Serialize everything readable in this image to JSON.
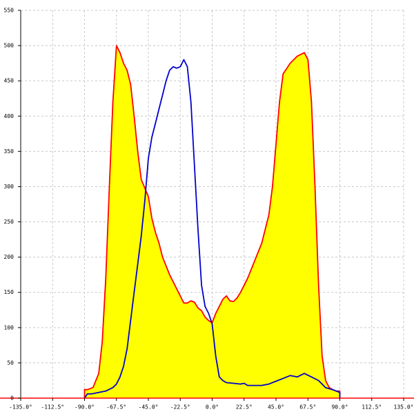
{
  "chart_data": {
    "type": "line",
    "xlim": [
      -135,
      135
    ],
    "ylim": [
      0,
      550
    ],
    "xticks": [
      {
        "value": -135,
        "label": "-135.0°"
      },
      {
        "value": -112.5,
        "label": "-112.5°"
      },
      {
        "value": -90,
        "label": "-90.0°"
      },
      {
        "value": -67.5,
        "label": "-67.5°"
      },
      {
        "value": -45,
        "label": "-45.0°"
      },
      {
        "value": -22.5,
        "label": "-22.5°"
      },
      {
        "value": 0,
        "label": "0.0°"
      },
      {
        "value": 22.5,
        "label": "22.5°"
      },
      {
        "value": 45,
        "label": "45.0°"
      },
      {
        "value": 67.5,
        "label": "67.5°"
      },
      {
        "value": 90,
        "label": "90.0°"
      },
      {
        "value": 112.5,
        "label": "112.5°"
      },
      {
        "value": 135,
        "label": "135.0°"
      }
    ],
    "yticks": [
      0,
      50,
      100,
      150,
      200,
      250,
      300,
      350,
      400,
      450,
      500,
      550
    ],
    "grid": true,
    "series": [
      {
        "color": "#ff0000",
        "fill": "#ffff00",
        "x": [
          -90,
          -90,
          -88,
          -84,
          -80,
          -77.5,
          -75,
          -72.5,
          -70,
          -67.5,
          -65,
          -62.5,
          -60,
          -57.5,
          -55,
          -52.5,
          -50,
          -45,
          -42.5,
          -40,
          -37.5,
          -35,
          -30,
          -25,
          -20,
          -17.5,
          -15,
          -12.5,
          -10,
          -7.5,
          -5,
          -2.5,
          0,
          2.5,
          5,
          7.5,
          10,
          12.5,
          15,
          17.5,
          20,
          25,
          30,
          35,
          40,
          42.5,
          45,
          47.5,
          50,
          55,
          60,
          65,
          67.5,
          70,
          72.5,
          75,
          77.5,
          80,
          82.5,
          85,
          87.5,
          90,
          90
        ],
        "values": [
          0,
          12,
          12,
          15,
          35,
          80,
          170,
          300,
          420,
          500,
          490,
          475,
          465,
          445,
          400,
          350,
          310,
          286,
          255,
          235,
          220,
          200,
          175,
          155,
          135,
          135,
          138,
          136,
          128,
          124,
          115,
          110,
          107,
          120,
          130,
          140,
          145,
          138,
          137,
          142,
          150,
          170,
          195,
          220,
          260,
          300,
          360,
          420,
          460,
          475,
          485,
          490,
          480,
          420,
          300,
          160,
          60,
          25,
          15,
          12,
          10,
          10,
          0
        ]
      },
      {
        "color": "#0000cc",
        "x": [
          -90,
          -88,
          -85,
          -80,
          -75,
          -70,
          -67.5,
          -65,
          -62.5,
          -60,
          -57.5,
          -55,
          -52.5,
          -50,
          -47.5,
          -45,
          -42.5,
          -40,
          -37.5,
          -35,
          -32.5,
          -30,
          -27.5,
          -25,
          -22.5,
          -20,
          -17.5,
          -15,
          -12.5,
          -10,
          -7.5,
          -5,
          -2.5,
          0,
          2.5,
          5,
          7.5,
          10,
          15,
          20,
          22.5,
          25,
          30,
          35,
          40,
          45,
          50,
          55,
          60,
          65,
          70,
          75,
          80,
          85,
          90,
          90
        ],
        "values": [
          0,
          6,
          6,
          8,
          10,
          15,
          20,
          30,
          45,
          70,
          110,
          150,
          190,
          230,
          280,
          340,
          370,
          390,
          410,
          430,
          450,
          465,
          470,
          468,
          470,
          480,
          470,
          420,
          330,
          240,
          160,
          130,
          120,
          105,
          60,
          30,
          25,
          22,
          21,
          20,
          21,
          18,
          18,
          18,
          20,
          24,
          28,
          32,
          30,
          35,
          30,
          25,
          15,
          12,
          8,
          0
        ]
      }
    ]
  }
}
